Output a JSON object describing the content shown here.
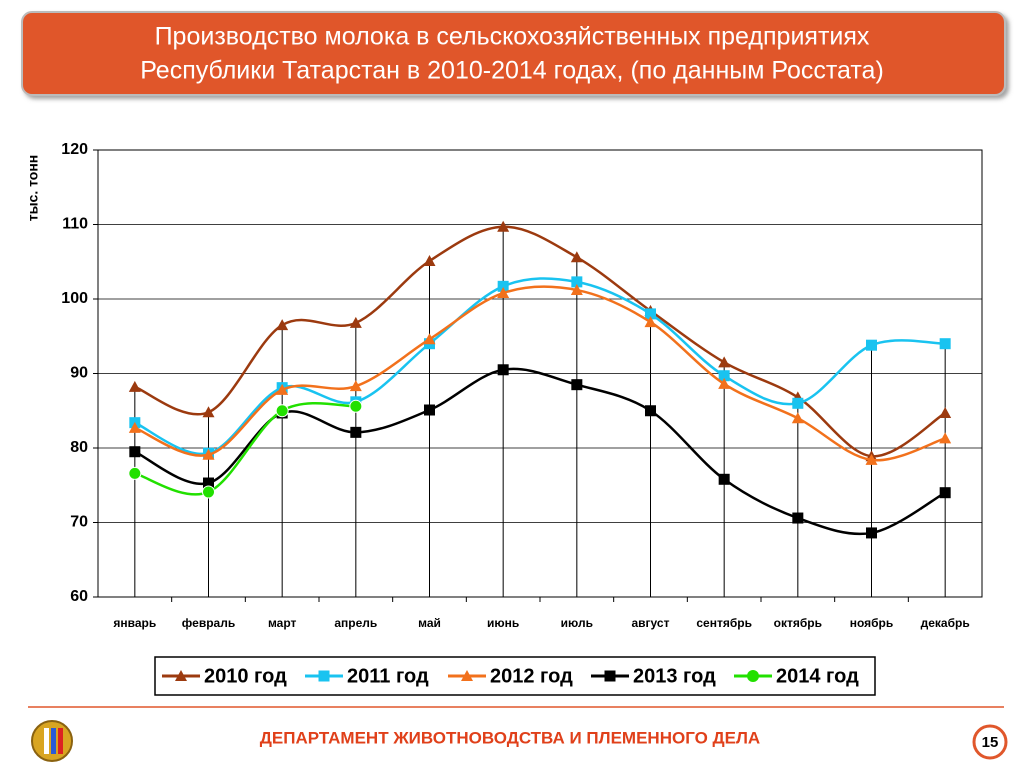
{
  "title": "Производство молока в сельскохозяйственных предприятиях",
  "title_line2": "Республики Татарстан в 2010-2014 годах, (по данным Росстата)",
  "footer": "ДЕПАРТАМЕНТ ЖИВОТНОВОДСТВА И ПЛЕМЕННОГО ДЕЛА",
  "page_number": "15",
  "chart_data": {
    "type": "line",
    "y_label": "тыс. тонн",
    "categories": [
      "январь",
      "февраль",
      "март",
      "апрель",
      "май",
      "июнь",
      "июль",
      "август",
      "сентябрь",
      "октябрь",
      "ноябрь",
      "декабрь"
    ],
    "series": [
      {
        "name": "2010 год",
        "color": "#9c3a0f",
        "marker": "triangle",
        "values": [
          88.2,
          84.8,
          96.5,
          96.8,
          105.1,
          109.7,
          105.6,
          98.4,
          91.5,
          86.8,
          78.9,
          84.7
        ]
      },
      {
        "name": "2011 год",
        "color": "#19c3f0",
        "marker": "square",
        "values": [
          83.4,
          79.3,
          88.1,
          86.2,
          94.0,
          101.7,
          102.3,
          98.0,
          89.7,
          86.0,
          93.8,
          94.0
        ]
      },
      {
        "name": "2012 год",
        "color": "#f2711c",
        "marker": "triangle",
        "values": [
          82.7,
          79.1,
          87.8,
          88.3,
          94.6,
          100.8,
          101.2,
          96.9,
          88.6,
          84.0,
          78.4,
          81.3
        ]
      },
      {
        "name": "2013 год",
        "color": "#000000",
        "marker": "square",
        "values": [
          79.5,
          75.3,
          84.7,
          82.1,
          85.1,
          90.5,
          88.5,
          85.0,
          75.8,
          70.6,
          68.6,
          74.0
        ]
      },
      {
        "name": "2014 год",
        "color": "#22e000",
        "marker": "circle",
        "values": [
          76.6,
          74.1,
          85.0,
          85.6,
          null,
          null,
          null,
          null,
          null,
          null,
          null,
          null
        ]
      }
    ],
    "ylim": [
      60,
      120
    ],
    "yticks": [
      60,
      70,
      80,
      90,
      100,
      110,
      120
    ],
    "grid": true,
    "legend": "bottom"
  }
}
